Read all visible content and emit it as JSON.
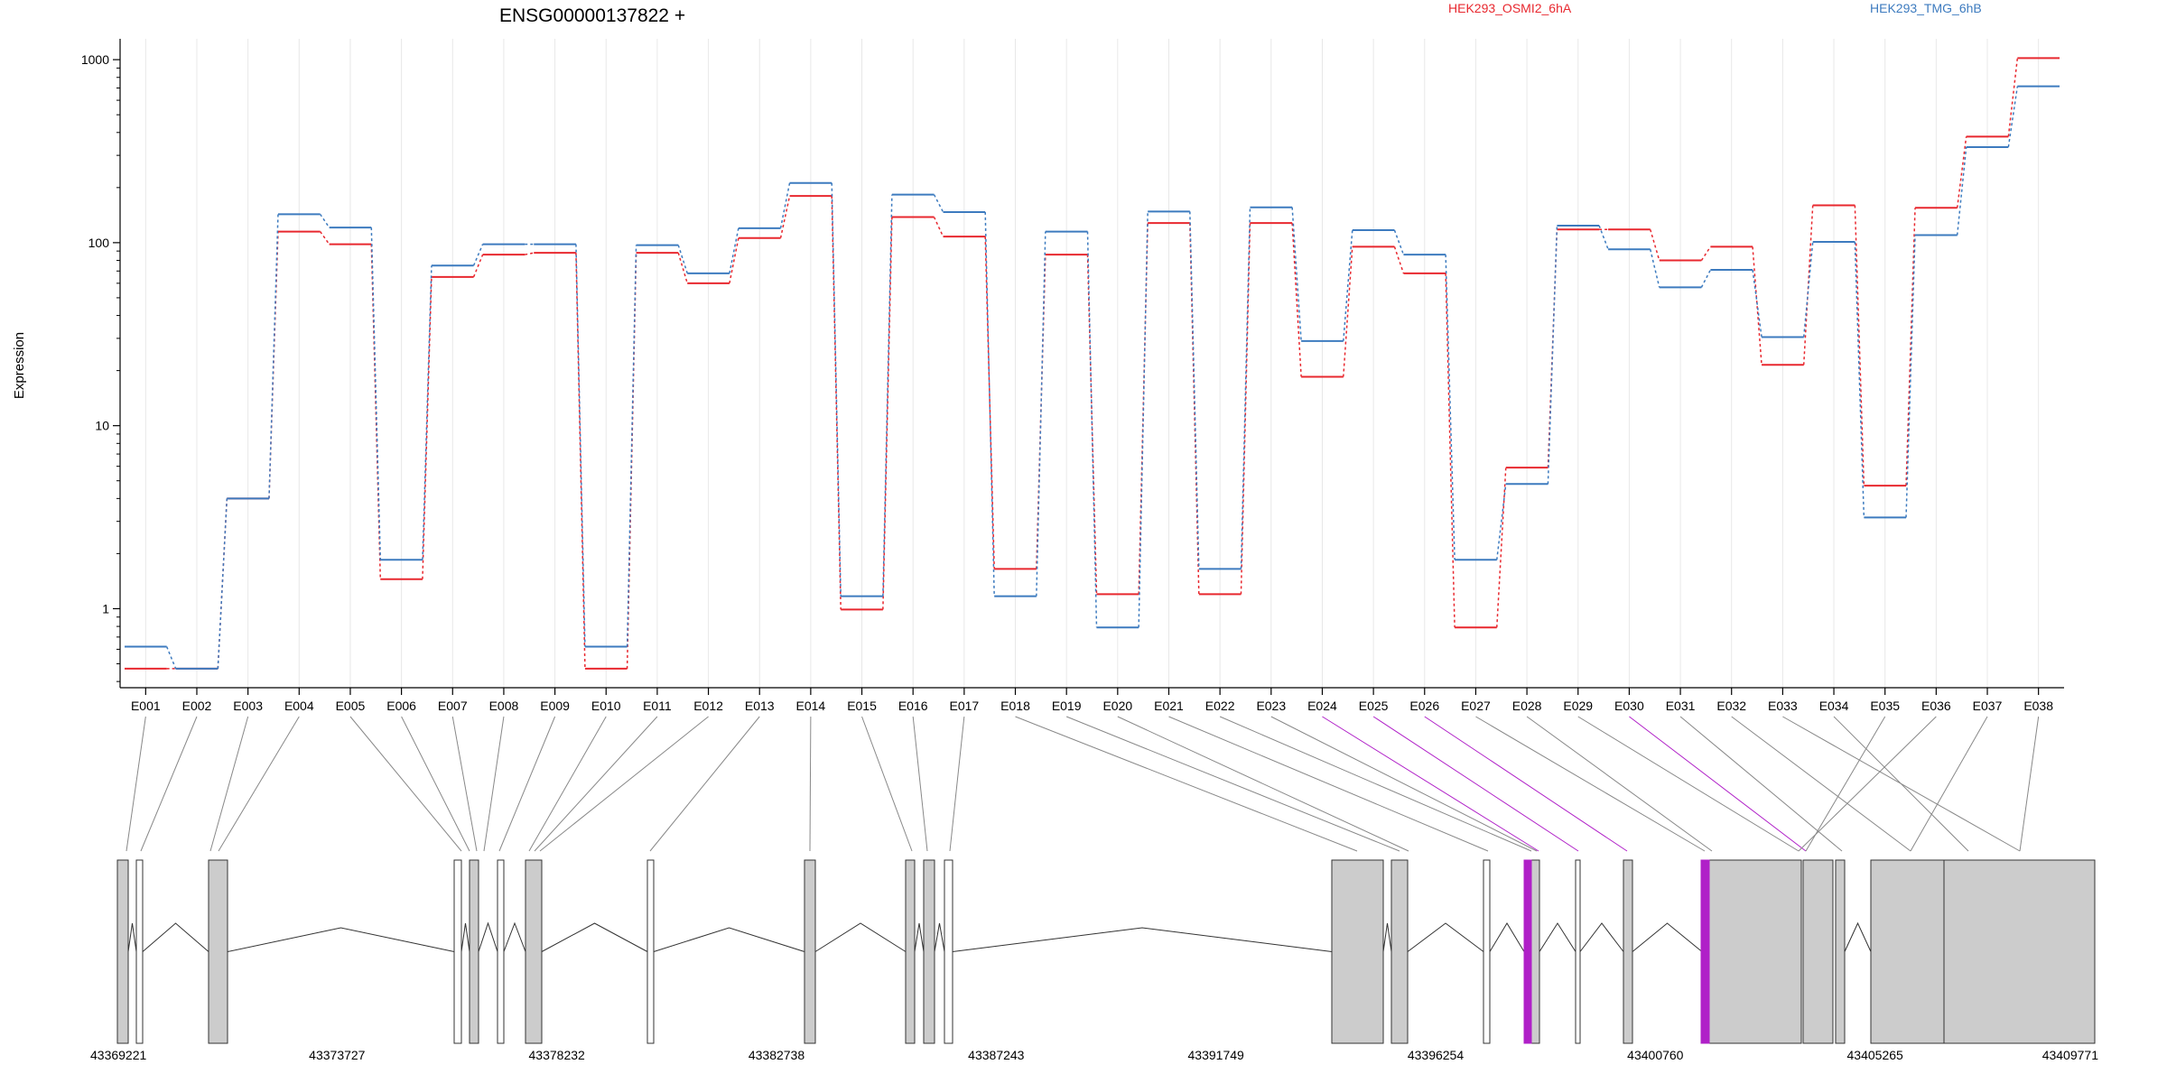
{
  "chart_data": {
    "type": "line",
    "title": "ENSG00000137822 +",
    "ylabel": "Expression",
    "yscale": "log",
    "ylim": [
      0.37,
      1300
    ],
    "yticks": [
      1,
      10,
      100,
      1000
    ],
    "grid": "vertical",
    "legend_placement": "top",
    "series": [
      {
        "name": "HEK293_OSMI2_6hA",
        "color": "#e8282f",
        "values": [
          0.47,
          0.47,
          4.0,
          115,
          98,
          1.45,
          65,
          86,
          88,
          0.47,
          88,
          60,
          106,
          180,
          0.99,
          138,
          108,
          1.65,
          86,
          1.2,
          128,
          1.2,
          128,
          18.5,
          95,
          68,
          0.79,
          5.9,
          118,
          118,
          80,
          95,
          21.5,
          160,
          4.7,
          155,
          380,
          1020
        ]
      },
      {
        "name": "HEK293_TMG_6hB",
        "color": "#3d7bbf",
        "values": [
          0.62,
          0.47,
          4.0,
          143,
          121,
          1.85,
          75,
          98,
          98,
          0.62,
          97,
          68,
          120,
          212,
          1.17,
          183,
          147,
          1.17,
          115,
          0.79,
          148,
          1.65,
          156,
          29,
          117,
          86,
          1.85,
          4.8,
          124,
          92,
          57,
          71,
          30.5,
          101,
          3.15,
          110,
          333,
          715
        ]
      }
    ],
    "categories": [
      "E001",
      "E002",
      "E003",
      "E004",
      "E005",
      "E006",
      "E007",
      "E008",
      "E009",
      "E010",
      "E011",
      "E012",
      "E013",
      "E014",
      "E015",
      "E016",
      "E017",
      "E018",
      "E019",
      "E020",
      "E021",
      "E022",
      "E023",
      "E024",
      "E025",
      "E026",
      "E027",
      "E028",
      "E029",
      "E030",
      "E031",
      "E032",
      "E033",
      "E034",
      "E035",
      "E036",
      "E037",
      "E038"
    ],
    "highlighted_exons": [
      "E024",
      "E025",
      "E026",
      "E030"
    ],
    "gene_model": {
      "genomic_ticks": [
        "43369221",
        "43373727",
        "43378232",
        "43382738",
        "43387243",
        "43391749",
        "43396254",
        "43400760",
        "43405265",
        "43409771"
      ]
    }
  },
  "colors": {
    "highlight": "#b020c8",
    "exon_fill": "#cccccc",
    "axis": "#000000",
    "grid": "#e8e8e8"
  }
}
